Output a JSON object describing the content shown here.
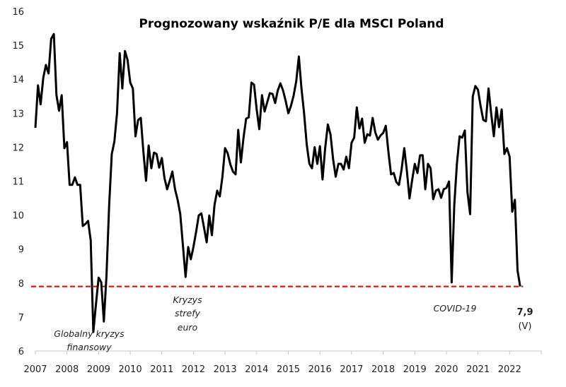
{
  "chart_data": {
    "type": "line",
    "title": "Prognozowany wskaźnik P/E dla MSCI Poland",
    "xlabel": "",
    "ylabel": "",
    "ylim": [
      6,
      16
    ],
    "xlim": [
      2007,
      2023
    ],
    "grid": false,
    "y_ticks": [
      "6",
      "7",
      "8",
      "9",
      "10",
      "11",
      "12",
      "13",
      "14",
      "15",
      "16"
    ],
    "x_ticks": [
      "2007",
      "2008",
      "2009",
      "2010",
      "2011",
      "2012",
      "2013",
      "2014",
      "2015",
      "2016",
      "2017",
      "2018",
      "2019",
      "2020",
      "2021",
      "2022"
    ],
    "series": [
      {
        "name": "P/E",
        "color": "#000000",
        "start": "2007-01",
        "frequency": "monthly",
        "values": [
          12.57,
          13.82,
          13.26,
          14.05,
          14.42,
          14.17,
          15.19,
          15.33,
          13.53,
          13.07,
          13.53,
          11.97,
          12.15,
          10.89,
          10.89,
          11.11,
          10.89,
          10.89,
          9.68,
          9.74,
          9.83,
          9.26,
          6.56,
          7.39,
          8.16,
          8.02,
          6.87,
          8.22,
          10.3,
          11.8,
          12.17,
          13.0,
          14.77,
          13.73,
          14.83,
          14.57,
          13.9,
          13.73,
          12.32,
          12.8,
          12.86,
          11.86,
          11.01,
          12.05,
          11.38,
          11.84,
          11.8,
          11.4,
          11.68,
          11.09,
          10.76,
          11.01,
          11.28,
          10.76,
          10.45,
          10.03,
          9.12,
          8.18,
          9.06,
          8.7,
          9.06,
          9.51,
          9.99,
          10.05,
          9.64,
          9.2,
          9.99,
          9.41,
          10.3,
          10.72,
          10.55,
          11.13,
          11.97,
          11.82,
          11.49,
          11.28,
          11.2,
          12.51,
          11.55,
          12.28,
          12.84,
          12.88,
          13.9,
          13.84,
          13.11,
          12.53,
          13.53,
          13.05,
          13.32,
          13.59,
          13.57,
          13.3,
          13.67,
          13.88,
          13.67,
          13.36,
          13.0,
          13.21,
          13.51,
          13.94,
          14.67,
          13.73,
          13.0,
          12.07,
          11.51,
          11.38,
          12.0,
          11.51,
          12.03,
          11.05,
          11.97,
          12.67,
          12.38,
          11.65,
          11.13,
          11.51,
          11.51,
          11.34,
          11.72,
          11.38,
          12.13,
          12.28,
          13.17,
          12.55,
          12.84,
          12.13,
          12.38,
          12.34,
          12.86,
          12.44,
          12.22,
          12.34,
          12.42,
          12.63,
          11.86,
          11.2,
          11.24,
          10.97,
          10.89,
          11.34,
          11.97,
          11.3,
          10.49,
          11.03,
          11.51,
          11.24,
          11.76,
          11.76,
          10.76,
          11.51,
          11.38,
          10.47,
          10.72,
          10.76,
          10.51,
          10.76,
          10.8,
          10.99,
          8.02,
          10.3,
          11.51,
          12.32,
          12.28,
          12.49,
          10.68,
          10.03,
          13.49,
          13.8,
          13.69,
          13.21,
          12.8,
          12.76,
          13.73,
          13.0,
          12.32,
          13.17,
          12.59,
          13.11,
          11.8,
          11.97,
          11.72,
          10.1,
          10.45,
          8.37,
          7.9
        ]
      }
    ],
    "reference_line": {
      "value": 7.9,
      "color": "#e00000",
      "style": "dashed"
    },
    "annotations": [
      {
        "id": "gfc",
        "lines": [
          "Globalny kryzys",
          "finansowy"
        ]
      },
      {
        "id": "euro",
        "lines": [
          "Kryzys",
          "strefy",
          "euro"
        ]
      },
      {
        "id": "covid",
        "lines": [
          "COVID-19"
        ]
      },
      {
        "id": "last",
        "lines": [
          "7,9",
          "(V)"
        ]
      }
    ]
  }
}
